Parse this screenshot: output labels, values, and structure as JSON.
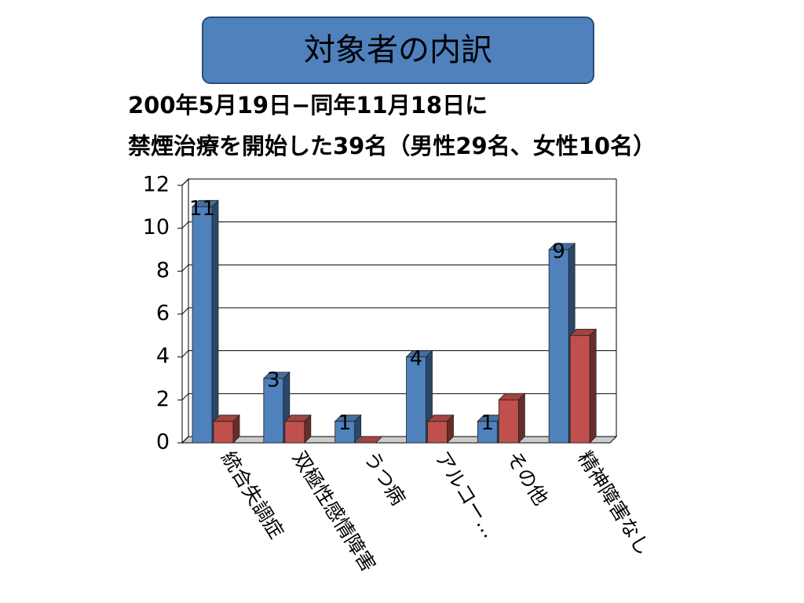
{
  "chart_data": {
    "type": "bar3d",
    "title": "対象者の内訳",
    "subtitle": [
      "200年5月19日−同年11月18日に",
      "禁煙治療を開始した39名（男性29名、女性10名）"
    ],
    "categories": [
      "統合失調症",
      "双極性感情障害",
      "うつ病",
      "アルコー…",
      "その他",
      "精神障害なし"
    ],
    "series": [
      {
        "color": "#4f81bd",
        "values": [
          11,
          3,
          1,
          4,
          1,
          9
        ],
        "data_labels": true
      },
      {
        "color": "#c0504d",
        "values": [
          1,
          1,
          0,
          1,
          2,
          5
        ],
        "data_labels": false
      }
    ],
    "ylim": [
      0,
      12
    ],
    "yticks": [
      0,
      2,
      4,
      6,
      8,
      10,
      12
    ],
    "grid": true
  }
}
